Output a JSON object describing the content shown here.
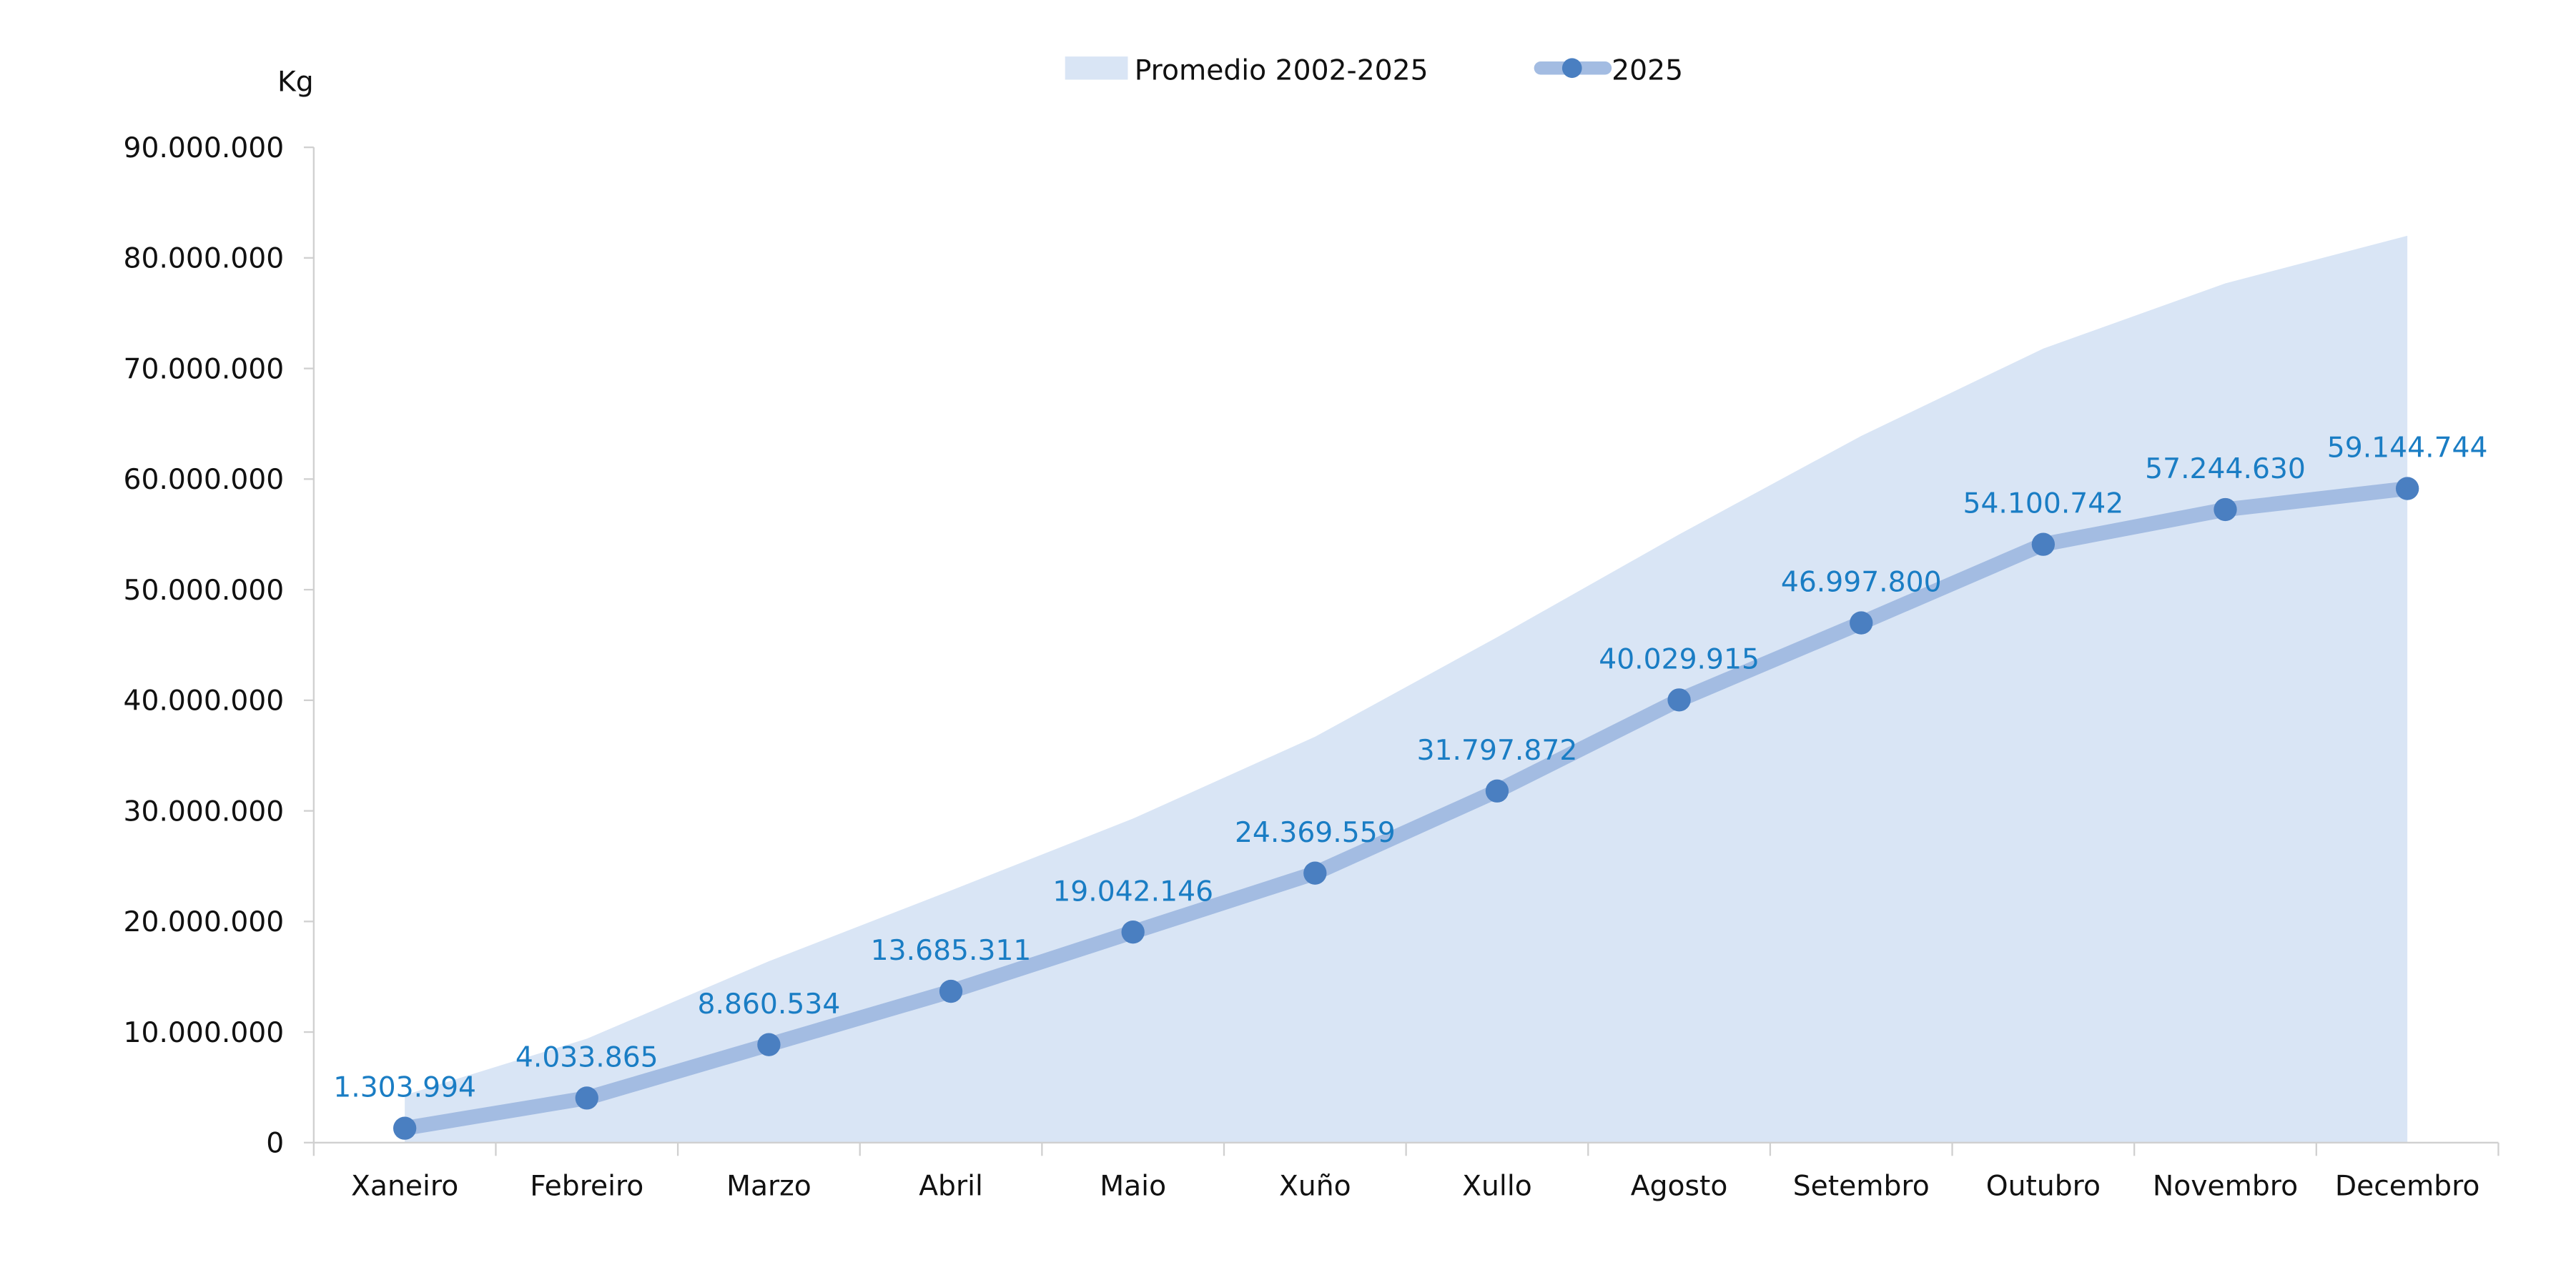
{
  "chart_data": {
    "type": "line",
    "title": "",
    "ylabel": "Kg",
    "xlabel": "",
    "ylim": [
      0,
      90000000
    ],
    "yticks": [
      "0",
      "10.000.000",
      "20.000.000",
      "30.000.000",
      "40.000.000",
      "50.000.000",
      "60.000.000",
      "70.000.000",
      "80.000.000",
      "90.000.000"
    ],
    "ytick_values": [
      0,
      10000000,
      20000000,
      30000000,
      40000000,
      50000000,
      60000000,
      70000000,
      80000000,
      90000000
    ],
    "categories": [
      "Xaneiro",
      "Febreiro",
      "Marzo",
      "Abril",
      "Maio",
      "Xuño",
      "Xullo",
      "Agosto",
      "Setembro",
      "Outubro",
      "Novembro",
      "Decembro"
    ],
    "legend_position": "top-center",
    "grid": false,
    "series": [
      {
        "name": "Promedio 2002-2025",
        "type": "area",
        "color": "#d9e5f5",
        "values": [
          4300000,
          9400000,
          16400000,
          22800000,
          29300000,
          36700000,
          45700000,
          55000000,
          63900000,
          71800000,
          77700000,
          82000000
        ]
      },
      {
        "name": "2025",
        "type": "line",
        "color": "#a3bce2",
        "marker_color": "#4a7fc1",
        "values": [
          1303994,
          4033865,
          8860534,
          13685311,
          19042146,
          24369559,
          31797872,
          40029915,
          46997800,
          54100742,
          57244630,
          59144744
        ],
        "labels": [
          "1.303.994",
          "4.033.865",
          "8.860.534",
          "13.685.311",
          "19.042.146",
          "24.369.559",
          "31.797.872",
          "40.029.915",
          "46.997.800",
          "54.100.742",
          "57.244.630",
          "59.144.744"
        ]
      }
    ]
  }
}
